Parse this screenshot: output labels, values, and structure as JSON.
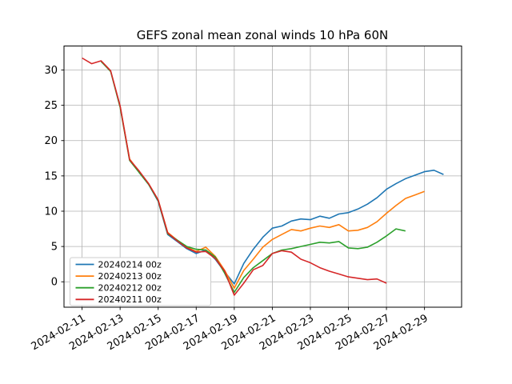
{
  "chart_data": {
    "type": "line",
    "title": "GEFS zonal mean zonal winds 10 hPa 60N",
    "xlabel": "",
    "ylabel": "",
    "x_unit": "days since 2024-02-11 00z",
    "xlim": [
      -0.95,
      19.95
    ],
    "ylim": [
      -3.6,
      33.4
    ],
    "grid": true,
    "grid_color": "#b0b0b0",
    "background_color": "#ffffff",
    "spine_color": "#000000",
    "legend_position": "lower left",
    "x_ticks": {
      "positions": [
        0,
        2,
        4,
        6,
        8,
        10,
        12,
        14,
        16,
        18
      ],
      "labels": [
        "2024-02-11",
        "2024-02-13",
        "2024-02-15",
        "2024-02-17",
        "2024-02-19",
        "2024-02-21",
        "2024-02-23",
        "2024-02-25",
        "2024-02-27",
        "2024-02-29"
      ],
      "rotation_deg": 30
    },
    "y_ticks": {
      "positions": [
        0,
        5,
        10,
        15,
        20,
        25,
        30
      ],
      "labels": [
        "0",
        "5",
        "10",
        "15",
        "20",
        "25",
        "30"
      ]
    },
    "series": [
      {
        "name": "20240214 00z",
        "color": "#1f77b4",
        "start_day": 3,
        "step_days": 0.5,
        "values": [
          15.5,
          13.8,
          11.4,
          6.7,
          5.7,
          4.7,
          4.0,
          4.5,
          3.2,
          1.4,
          -0.3,
          2.6,
          4.6,
          6.3,
          7.6,
          7.9,
          8.6,
          8.9,
          8.8,
          9.3,
          9.0,
          9.6,
          9.8,
          10.3,
          11.0,
          11.9,
          13.1,
          13.9,
          14.6,
          15.1,
          15.6,
          15.8,
          15.2
        ]
      },
      {
        "name": "20240213 00z",
        "color": "#ff7f0e",
        "start_day": 2,
        "step_days": 0.5,
        "values": [
          24.8,
          17.4,
          15.6,
          13.9,
          11.6,
          7.0,
          5.9,
          4.9,
          4.3,
          4.9,
          3.6,
          1.6,
          -0.9,
          1.6,
          3.2,
          4.9,
          6.0,
          6.7,
          7.4,
          7.2,
          7.6,
          7.9,
          7.7,
          8.1,
          7.2,
          7.3,
          7.7,
          8.5,
          9.7,
          10.8,
          11.8,
          12.3,
          12.8
        ]
      },
      {
        "name": "20240212 00z",
        "color": "#2ca02c",
        "start_day": 1,
        "step_days": 0.5,
        "values": [
          31.2,
          29.8,
          24.7,
          17.2,
          15.5,
          13.8,
          11.5,
          6.8,
          5.9,
          5.0,
          4.6,
          4.5,
          3.5,
          1.2,
          -1.5,
          0.6,
          2.0,
          3.0,
          4.0,
          4.5,
          4.7,
          5.0,
          5.3,
          5.6,
          5.5,
          5.7,
          4.8,
          4.7,
          4.9,
          5.6,
          6.5,
          7.5,
          7.2
        ]
      },
      {
        "name": "20240211 00z",
        "color": "#d62728",
        "start_day": 0,
        "step_days": 0.5,
        "values": [
          31.7,
          30.9,
          31.3,
          29.9,
          24.9,
          17.3,
          15.7,
          13.9,
          11.6,
          6.9,
          5.8,
          4.8,
          4.2,
          4.3,
          3.3,
          1.5,
          -1.9,
          -0.2,
          1.7,
          2.3,
          4.0,
          4.4,
          4.2,
          3.2,
          2.7,
          2.0,
          1.5,
          1.1,
          0.7,
          0.5,
          0.3,
          0.4,
          -0.2
        ]
      }
    ]
  }
}
